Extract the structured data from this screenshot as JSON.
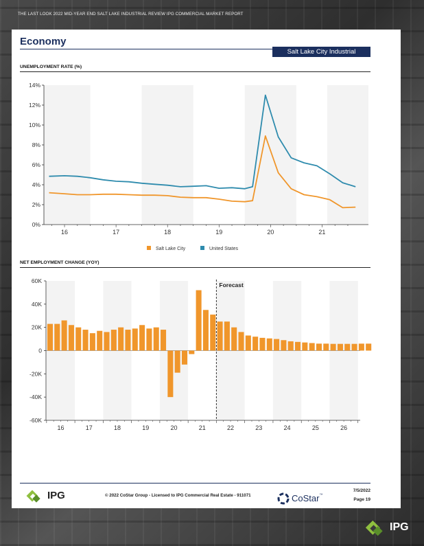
{
  "header": {
    "topbar": "THE LAST LOOK    2022 MID-YEAR END SALT LAKE INDUSTRIAL REVIEW   IPG COMMERCIAL MARKET REPORT"
  },
  "page": {
    "title": "Economy",
    "badge": "Salt Lake City Industrial"
  },
  "colors": {
    "navy": "#1b2f5e",
    "orange": "#f0962b",
    "teal": "#2e8bad",
    "band": "#f3f3f3"
  },
  "chart_data": [
    {
      "type": "line",
      "title": "UNEMPLOYMENT RATE (%)",
      "xlabel": "",
      "ylabel": "",
      "ylim": [
        0,
        14
      ],
      "yticks": [
        0,
        2,
        4,
        6,
        8,
        10,
        12,
        14
      ],
      "ytick_labels": [
        "0%",
        "2%",
        "4%",
        "6%",
        "8%",
        "10%",
        "12%",
        "14%"
      ],
      "xlim": [
        15.6,
        21.9
      ],
      "xticks": [
        16,
        17,
        18,
        19,
        20,
        21
      ],
      "xtick_labels": [
        "16",
        "17",
        "18",
        "19",
        "20",
        "21"
      ],
      "legend": "bottom-center",
      "series": [
        {
          "name": "Salt Lake City",
          "color": "#f0962b",
          "x": [
            15.7,
            16.0,
            16.25,
            16.5,
            16.75,
            17.0,
            17.25,
            17.5,
            17.75,
            18.0,
            18.25,
            18.5,
            18.75,
            19.0,
            19.25,
            19.5,
            19.65,
            19.9,
            20.15,
            20.4,
            20.65,
            20.9,
            21.15,
            21.4,
            21.65
          ],
          "values": [
            3.2,
            3.1,
            3.0,
            3.0,
            3.05,
            3.05,
            3.0,
            2.95,
            2.95,
            2.9,
            2.75,
            2.7,
            2.7,
            2.55,
            2.35,
            2.3,
            2.4,
            8.9,
            5.2,
            3.6,
            3.0,
            2.8,
            2.5,
            1.7,
            1.75
          ]
        },
        {
          "name": "United States",
          "color": "#2e8bad",
          "x": [
            15.7,
            16.0,
            16.25,
            16.5,
            16.75,
            17.0,
            17.25,
            17.5,
            17.75,
            18.0,
            18.25,
            18.5,
            18.75,
            19.0,
            19.25,
            19.5,
            19.65,
            19.9,
            20.15,
            20.4,
            20.65,
            20.9,
            21.15,
            21.4,
            21.65
          ],
          "values": [
            4.85,
            4.9,
            4.85,
            4.7,
            4.5,
            4.35,
            4.3,
            4.15,
            4.05,
            3.95,
            3.8,
            3.85,
            3.9,
            3.65,
            3.7,
            3.6,
            3.8,
            13.0,
            8.8,
            6.7,
            6.2,
            5.9,
            5.1,
            4.2,
            3.8
          ]
        }
      ]
    },
    {
      "type": "bar",
      "title": "NET EMPLOYMENT CHANGE (YOY)",
      "xlabel": "",
      "ylabel": "",
      "ylim": [
        -60000,
        60000
      ],
      "yticks": [
        -60000,
        -40000,
        -20000,
        0,
        20000,
        40000,
        60000
      ],
      "ytick_labels": [
        "-60K",
        "-40K",
        "-20K",
        "0",
        "20K",
        "40K",
        "60K"
      ],
      "xtick_labels": [
        "16",
        "17",
        "18",
        "19",
        "20",
        "21",
        "22",
        "23",
        "24",
        "25",
        "26"
      ],
      "forecast_label": "Forecast",
      "forecast_start_year": 22,
      "bar_color": "#f0962b",
      "legend": "none",
      "values": [
        23000,
        23000,
        26000,
        22000,
        20000,
        18000,
        15000,
        17000,
        16000,
        18000,
        20000,
        18000,
        19000,
        22000,
        19000,
        20000,
        18000,
        -40000,
        -19000,
        -12000,
        -3000,
        52000,
        35000,
        31000,
        25000,
        25000,
        20000,
        16000,
        13000,
        12000,
        11000,
        10500,
        10000,
        9000,
        8000,
        7500,
        7000,
        6500,
        6000,
        6000,
        5800,
        5800,
        5800,
        5800,
        6000,
        6000
      ]
    }
  ],
  "footer": {
    "ipg_text": "IPG",
    "copyright": "© 2022 CoStar Group - Licensed to IPG Commercial Real Estate - 911071",
    "costar": "CoStar",
    "costar_tm": "™",
    "date": "7/5/2022",
    "page_number": "Page 19"
  }
}
